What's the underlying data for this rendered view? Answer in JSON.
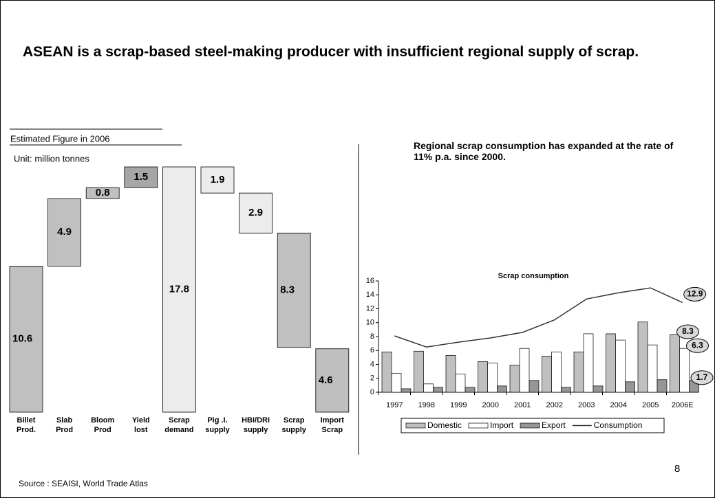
{
  "header": {
    "title": "ASEAN is a scrap-based steel-making producer with insufficient regional supply of scrap."
  },
  "chart_data": [
    {
      "type": "waterfall",
      "note": "Estimated Figure in 2006",
      "unit": "Unit: million tonnes",
      "categories": [
        "Billet\nProd.",
        "Slab\nProd",
        "Bloom\nProd",
        "Yield\nlost",
        "Scrap\ndemand",
        "Pig .I.\nsupply",
        "HBI/DRI\nsupply",
        "Scrap\nsupply",
        "Import\nScrap"
      ],
      "values": [
        10.6,
        4.9,
        0.8,
        1.5,
        17.8,
        1.9,
        2.9,
        8.3,
        4.6
      ],
      "steps": [
        "total",
        "up",
        "up",
        "up",
        "total",
        "down",
        "down",
        "down",
        "total"
      ],
      "colors": [
        "#c0c0c0",
        "#c0c0c0",
        "#c0c0c0",
        "#a6a6a6",
        "#ececec",
        "#ececec",
        "#ececec",
        "#c0c0c0",
        "#bfbfbf"
      ]
    },
    {
      "type": "bar",
      "subtitle": "Regional scrap consumption has expanded at the rate of 11% p.a. since 2000.",
      "title": "Scrap consumption",
      "categories": [
        "1997",
        "1998",
        "1999",
        "2000",
        "2001",
        "2002",
        "2003",
        "2004",
        "2005",
        "2006E"
      ],
      "series": [
        {
          "name": "Domestic",
          "color": "#c0c0c0",
          "values": [
            5.8,
            5.9,
            5.3,
            4.4,
            3.9,
            5.2,
            5.8,
            8.4,
            10.1,
            8.3
          ]
        },
        {
          "name": "Import",
          "color": "#ffffff",
          "values": [
            2.7,
            1.2,
            2.6,
            4.2,
            6.3,
            5.8,
            8.4,
            7.5,
            6.8,
            6.3
          ]
        },
        {
          "name": "Export",
          "color": "#969696",
          "values": [
            0.5,
            0.7,
            0.7,
            0.9,
            1.7,
            0.7,
            0.9,
            1.5,
            1.8,
            1.7
          ]
        },
        {
          "name": "Consumption",
          "type": "line",
          "color": "#333333",
          "values": [
            8.1,
            6.5,
            7.2,
            7.8,
            8.6,
            10.4,
            13.4,
            14.3,
            15.0,
            12.9
          ]
        }
      ],
      "ylim": [
        0,
        16
      ],
      "yticks": [
        0,
        2,
        4,
        6,
        8,
        10,
        12,
        14,
        16
      ],
      "data_labels": "last",
      "legend": "bottom"
    }
  ],
  "page_number": "8",
  "source": "Source : SEAISI, World Trade Atlas"
}
